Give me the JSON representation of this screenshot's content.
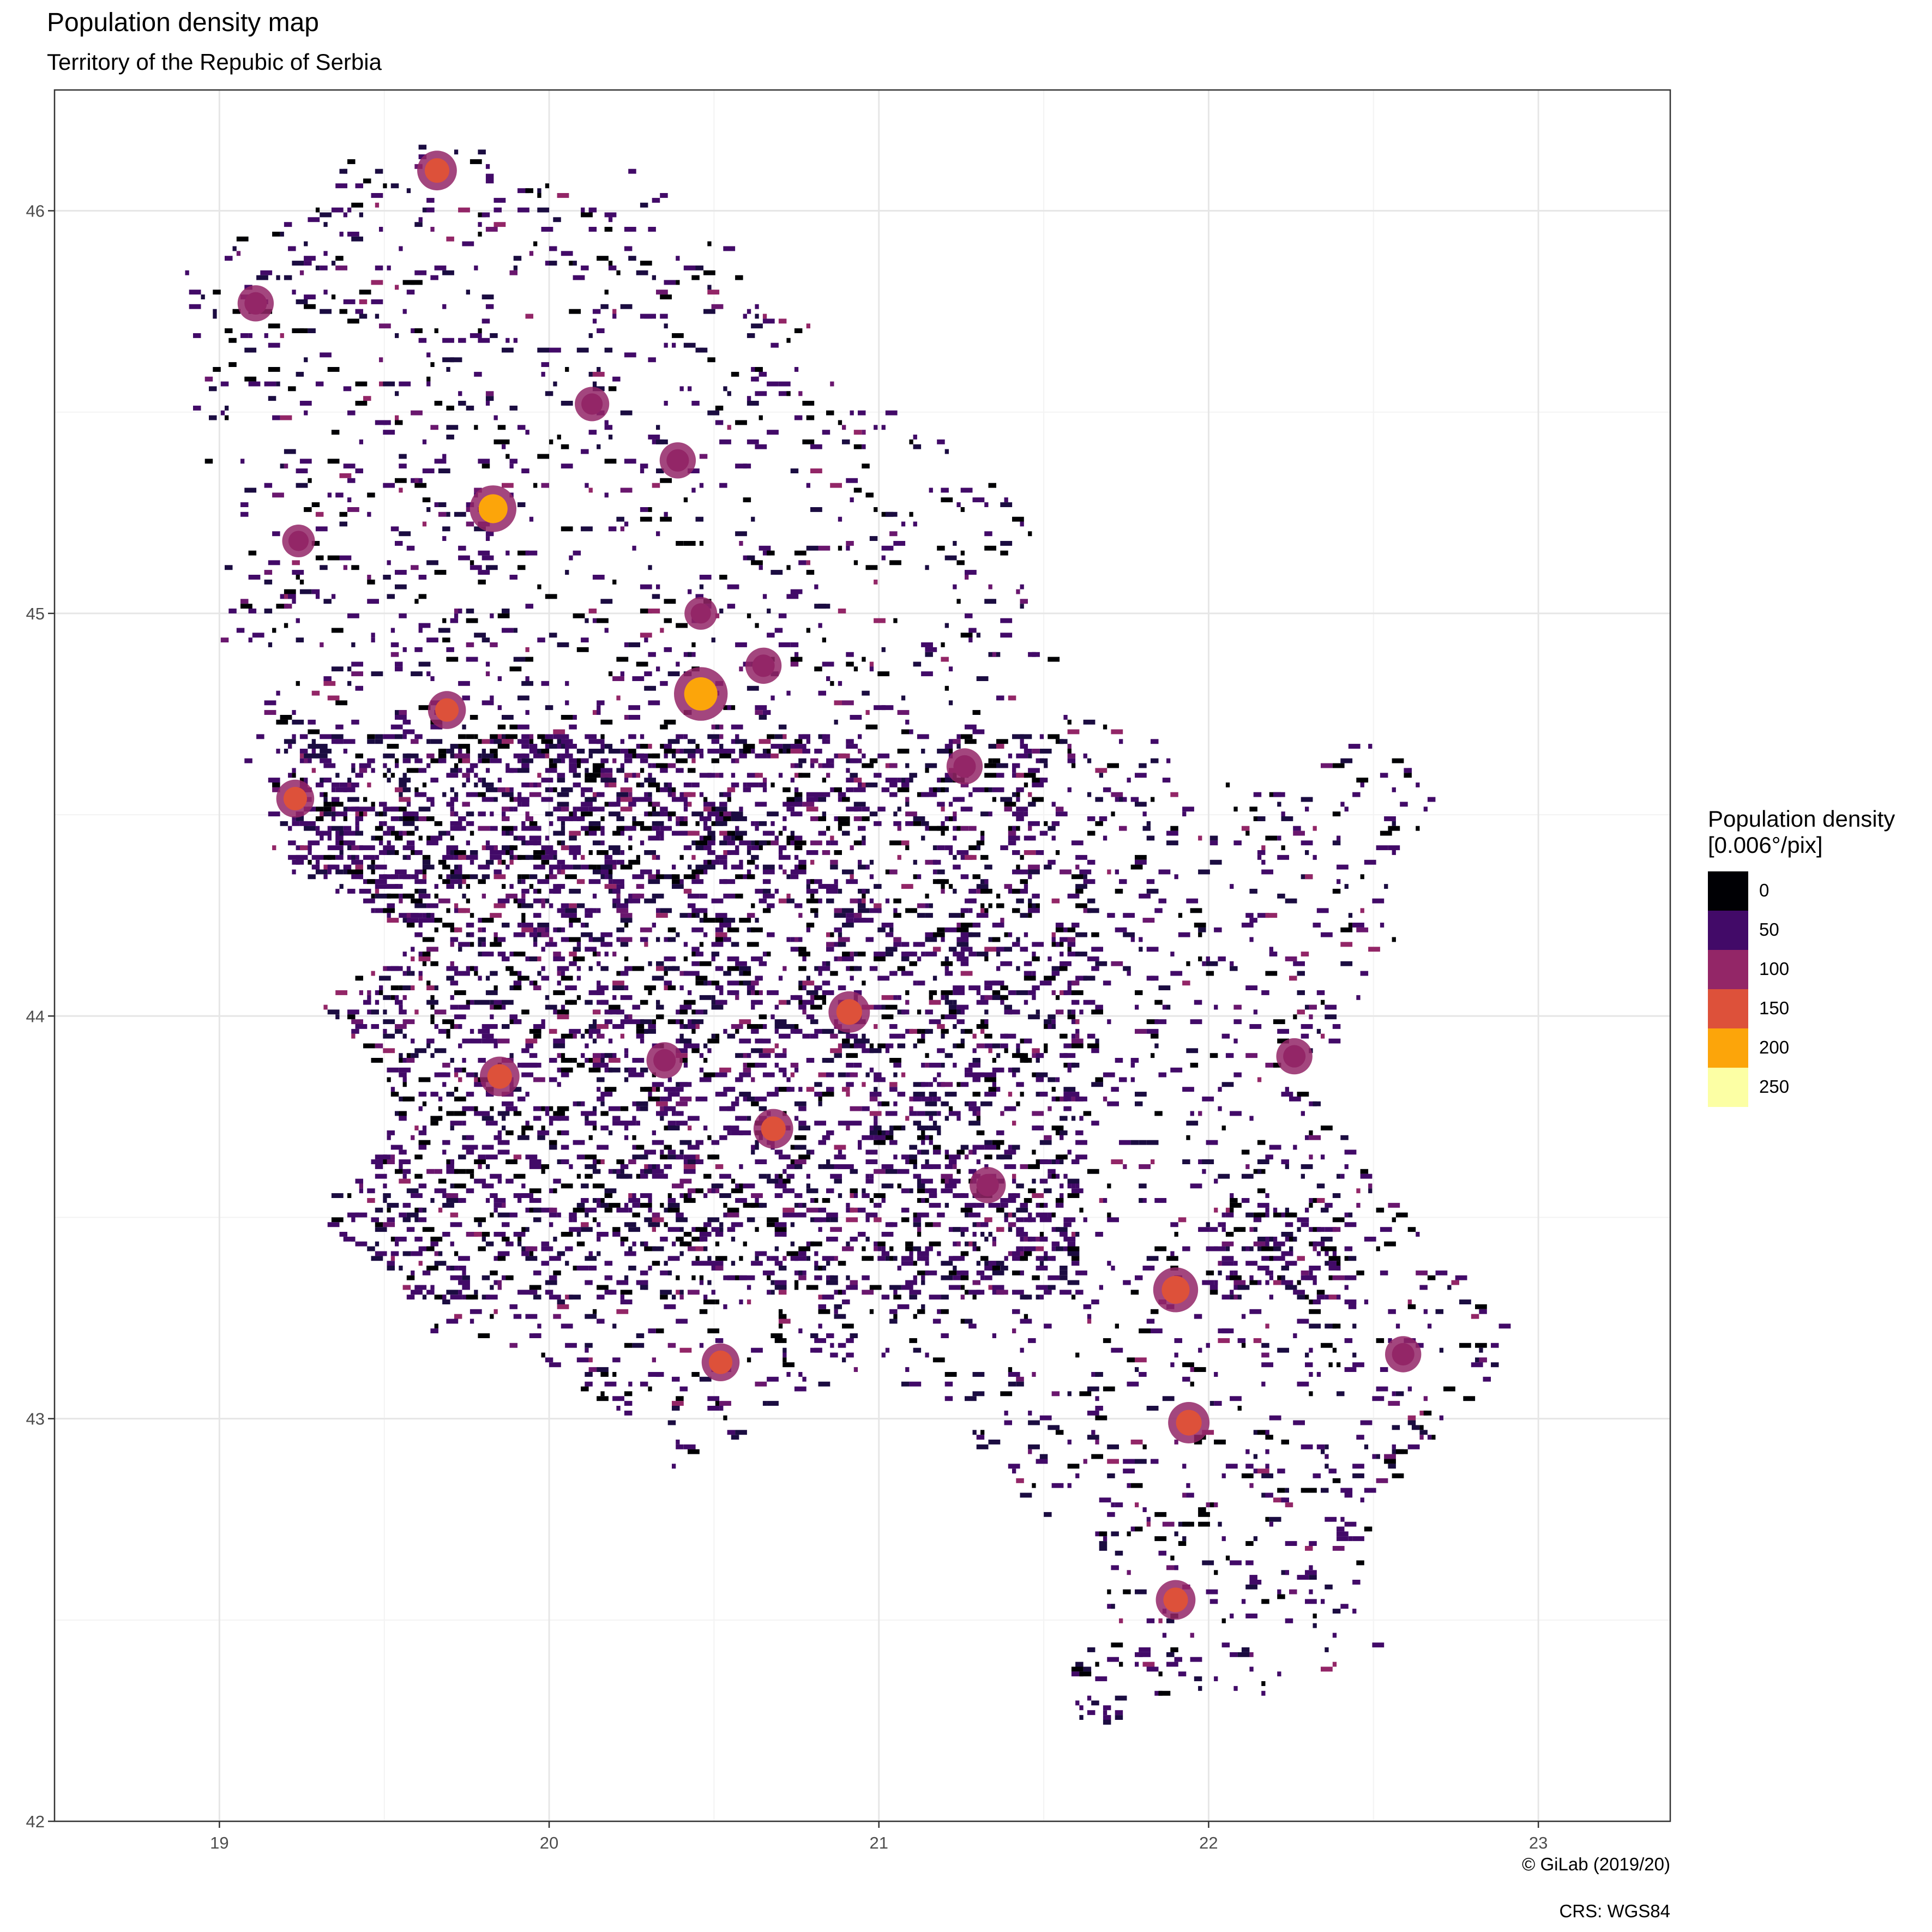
{
  "title": "Population density map",
  "subtitle": "Territory of the Repubic of Serbia",
  "caption": "© GiLab (2019/20)",
  "crs": "CRS: WGS84",
  "chart_data": {
    "type": "heatmap",
    "title": "Population density map",
    "subtitle": "Territory of the Repubic of Serbia",
    "xlabel": "",
    "ylabel": "",
    "xlim": [
      18.5,
      23.4
    ],
    "ylim": [
      42,
      46.3
    ],
    "x_ticks": [
      19,
      20,
      21,
      22,
      23
    ],
    "y_ticks": [
      42,
      43,
      44,
      45,
      46
    ],
    "grid": true,
    "legend": {
      "title_line1": "Population density",
      "title_line2": "[0.006°/pix]",
      "placement": "right",
      "breaks": [
        {
          "label": "0",
          "color": "#000004"
        },
        {
          "label": "50",
          "color": "#420a68"
        },
        {
          "label": "100",
          "color": "#932667"
        },
        {
          "label": "150",
          "color": "#dd513a"
        },
        {
          "label": "200",
          "color": "#fca50a"
        },
        {
          "label": "250",
          "color": "#fcffa4"
        }
      ]
    },
    "cities": [
      {
        "lon": 20.46,
        "lat": 44.8,
        "value": 220
      },
      {
        "lon": 19.83,
        "lat": 45.26,
        "value": 180
      },
      {
        "lon": 21.9,
        "lat": 43.32,
        "value": 170
      },
      {
        "lon": 20.91,
        "lat": 44.01,
        "value": 150
      },
      {
        "lon": 19.66,
        "lat": 46.1,
        "value": 140
      },
      {
        "lon": 20.39,
        "lat": 45.38,
        "value": 120
      },
      {
        "lon": 19.11,
        "lat": 45.77,
        "value": 120
      },
      {
        "lon": 20.65,
        "lat": 44.87,
        "value": 120
      },
      {
        "lon": 20.35,
        "lat": 43.89,
        "value": 120
      },
      {
        "lon": 21.33,
        "lat": 43.58,
        "value": 120
      },
      {
        "lon": 21.94,
        "lat": 42.99,
        "value": 150
      },
      {
        "lon": 21.9,
        "lat": 42.55,
        "value": 140
      },
      {
        "lon": 19.69,
        "lat": 44.76,
        "value": 130
      },
      {
        "lon": 19.23,
        "lat": 44.54,
        "value": 130
      },
      {
        "lon": 19.85,
        "lat": 43.85,
        "value": 140
      },
      {
        "lon": 20.68,
        "lat": 43.72,
        "value": 140
      },
      {
        "lon": 22.26,
        "lat": 43.9,
        "value": 120
      },
      {
        "lon": 22.59,
        "lat": 43.16,
        "value": 120
      },
      {
        "lon": 20.52,
        "lat": 43.14,
        "value": 130
      },
      {
        "lon": 21.26,
        "lat": 44.62,
        "value": 120
      },
      {
        "lon": 20.13,
        "lat": 45.52,
        "value": 110
      },
      {
        "lon": 19.24,
        "lat": 45.18,
        "value": 100
      },
      {
        "lon": 20.46,
        "lat": 45.0,
        "value": 100
      }
    ]
  }
}
